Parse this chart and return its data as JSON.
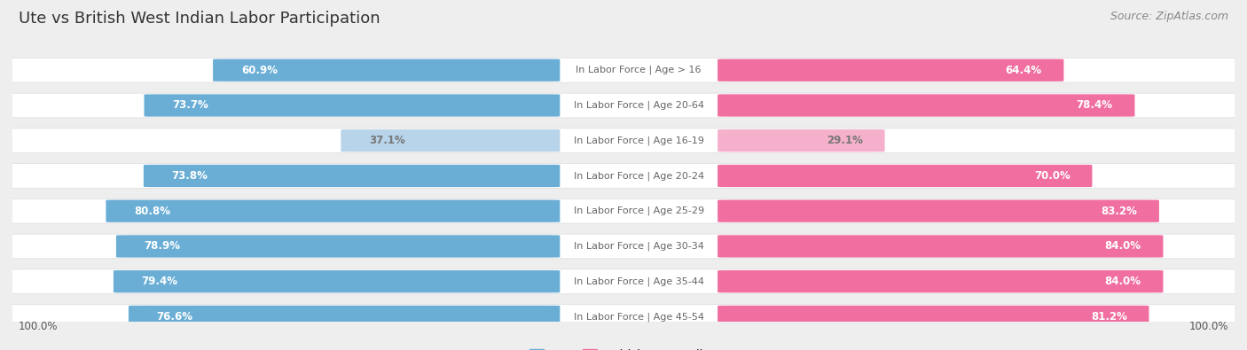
{
  "title": "Ute vs British West Indian Labor Participation",
  "source": "Source: ZipAtlas.com",
  "categories": [
    "In Labor Force | Age > 16",
    "In Labor Force | Age 20-64",
    "In Labor Force | Age 16-19",
    "In Labor Force | Age 20-24",
    "In Labor Force | Age 25-29",
    "In Labor Force | Age 30-34",
    "In Labor Force | Age 35-44",
    "In Labor Force | Age 45-54"
  ],
  "ute_values": [
    60.9,
    73.7,
    37.1,
    73.8,
    80.8,
    78.9,
    79.4,
    76.6
  ],
  "bwi_values": [
    64.4,
    78.4,
    29.1,
    70.0,
    83.2,
    84.0,
    84.0,
    81.2
  ],
  "ute_color": "#6aaed6",
  "ute_color_light": "#b8d4ea",
  "bwi_color": "#f06fa0",
  "bwi_color_light": "#f5b0cb",
  "label_color_white": "#ffffff",
  "label_color_dark": "#777777",
  "bg_color": "#eeeeee",
  "row_bg_odd": "#f8f8f8",
  "row_bg_even": "#f0f0f0",
  "row_bg": "#f5f5f5",
  "center_label_color": "#666666",
  "max_val": 100.0,
  "legend_ute": "Ute",
  "legend_bwi": "British West Indian",
  "title_fontsize": 13,
  "source_fontsize": 9,
  "value_fontsize": 8.5,
  "cat_fontsize": 8,
  "axis_fontsize": 8.5
}
